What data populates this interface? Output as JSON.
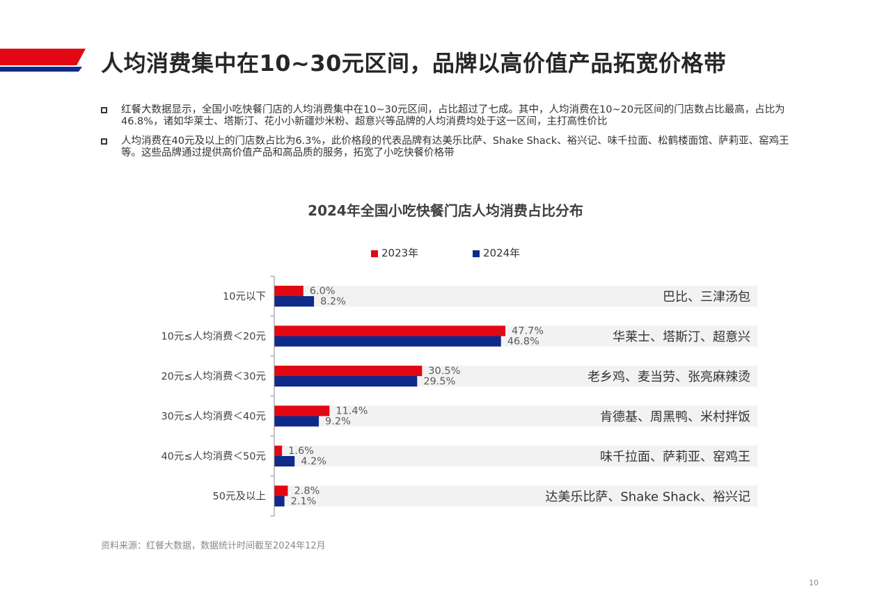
{
  "header": {
    "title": "人均消费集中在10~30元区间，品牌以高价值产品拓宽价格带",
    "flag_colors": [
      "#e30613",
      "#0e2a8a"
    ]
  },
  "bullets": [
    {
      "icon": "square-bullet-icon",
      "text": "红餐大数据显示，全国小吃快餐门店的人均消费集中在10~30元区间，占比超过了七成。其中，人均消费在10~20元区间的门店数占比最高，占比为46.8%，诸如华莱士、塔斯汀、花小小新疆炒米粉、超意兴等品牌的人均消费均处于这一区间，主打高性价比"
    },
    {
      "icon": "square-bullet-icon",
      "text": "人均消费在40元及以上的门店数占比为6.3%，此价格段的代表品牌有达美乐比萨、Shake Shack、裕兴记、味千拉面、松鹤楼面馆、萨莉亚、窑鸡王等。这些品牌通过提供高价值产品和高品质的服务，拓宽了小吃快餐价格带"
    }
  ],
  "chart_data": {
    "type": "bar",
    "orientation": "horizontal",
    "title": "2024年全国小吃快餐门店人均消费占比分布",
    "categories": [
      "10元以下",
      "10元≤人均消费＜20元",
      "20元≤人均消费＜30元",
      "30元≤人均消费＜40元",
      "40元≤人均消费＜50元",
      "50元及以上"
    ],
    "series": [
      {
        "name": "2023年",
        "color": "#e30613",
        "values": [
          6.0,
          47.7,
          30.5,
          11.4,
          1.6,
          2.8
        ],
        "labels": [
          "6.0%",
          "47.7%",
          "30.5%",
          "11.4%",
          "1.6%",
          "2.8%"
        ]
      },
      {
        "name": "2024年",
        "color": "#0e2a8a",
        "values": [
          8.2,
          46.8,
          29.5,
          9.2,
          4.2,
          2.1
        ],
        "labels": [
          "8.2%",
          "46.8%",
          "29.5%",
          "9.2%",
          "4.2%",
          "2.1%"
        ]
      }
    ],
    "brands": [
      "巴比、三津汤包",
      "华莱士、塔斯汀、超意兴",
      "老乡鸡、麦当劳、张亮麻辣烫",
      "肯德基、周黑鸭、米村拌饭",
      "味千拉面、萨莉亚、窑鸡王",
      "达美乐比萨、Shake Shack、裕兴记"
    ],
    "unit": "%",
    "xlim": [
      0,
      100
    ],
    "grid": false,
    "legend_position": "top"
  },
  "footer": {
    "source": "资料来源：红餐大数据，数据统计时间截至2024年12月",
    "page_number": "10"
  }
}
